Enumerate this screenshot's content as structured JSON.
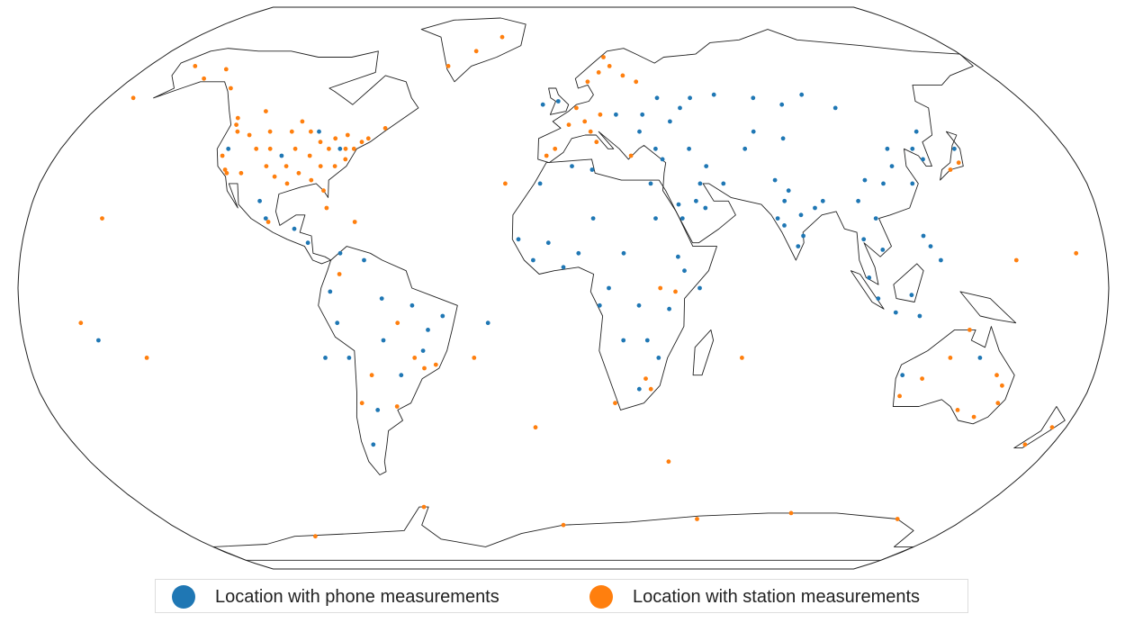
{
  "series": [
    {
      "name": "Location with phone measurements",
      "color": "#1f77b4",
      "points": [
        [
          -90,
          45
        ],
        [
          -80,
          40
        ],
        [
          -100,
          38
        ],
        [
          -120,
          40
        ],
        [
          -100,
          20
        ],
        [
          -103,
          25
        ],
        [
          -90,
          17
        ],
        [
          -85,
          13
        ],
        [
          -75,
          -10
        ],
        [
          -60,
          -3
        ],
        [
          -50,
          -5
        ],
        [
          -45,
          -12
        ],
        [
          -40,
          -8
        ],
        [
          -47,
          -18
        ],
        [
          -60,
          -15
        ],
        [
          -55,
          -25
        ],
        [
          -65,
          -35
        ],
        [
          -70,
          -45
        ],
        [
          -72,
          -20
        ],
        [
          -77,
          -1
        ],
        [
          -66,
          8
        ],
        [
          -74,
          10
        ],
        [
          30,
          50
        ],
        [
          37,
          55
        ],
        [
          40,
          48
        ],
        [
          45,
          52
        ],
        [
          50,
          55
        ],
        [
          28,
          45
        ],
        [
          20,
          50
        ],
        [
          -8,
          53
        ],
        [
          -2,
          54
        ],
        [
          33,
          40
        ],
        [
          35,
          37
        ],
        [
          45,
          40
        ],
        [
          60,
          56
        ],
        [
          75,
          55
        ],
        [
          85,
          53
        ],
        [
          95,
          56
        ],
        [
          105,
          52
        ],
        [
          130,
          45
        ],
        [
          70,
          45
        ],
        [
          80,
          43
        ],
        [
          65,
          40
        ],
        [
          55,
          30
        ],
        [
          50,
          35
        ],
        [
          45,
          25
        ],
        [
          40,
          20
        ],
        [
          47,
          30
        ],
        [
          39,
          24
        ],
        [
          48,
          23
        ],
        [
          72,
          20
        ],
        [
          75,
          25
        ],
        [
          77,
          28
        ],
        [
          80,
          15
        ],
        [
          85,
          23
        ],
        [
          78,
          12
        ],
        [
          88,
          25
        ],
        [
          74,
          18
        ],
        [
          80,
          21
        ],
        [
          73,
          31
        ],
        [
          100,
          14
        ],
        [
          105,
          20
        ],
        [
          106,
          11
        ],
        [
          101,
          3
        ],
        [
          110,
          -7
        ],
        [
          120,
          15
        ],
        [
          122,
          12
        ],
        [
          125,
          8
        ],
        [
          115,
          -2
        ],
        [
          104,
          -3
        ],
        [
          118,
          -8
        ],
        [
          110,
          30
        ],
        [
          115,
          35
        ],
        [
          120,
          30
        ],
        [
          104,
          31
        ],
        [
          100,
          25
        ],
        [
          116,
          40
        ],
        [
          125,
          40
        ],
        [
          127,
          37
        ],
        [
          140,
          40
        ],
        [
          5,
          10
        ],
        [
          0,
          6
        ],
        [
          -5,
          13
        ],
        [
          -15,
          14
        ],
        [
          -8,
          30
        ],
        [
          3,
          35
        ],
        [
          10,
          34
        ],
        [
          30,
          30
        ],
        [
          31,
          20
        ],
        [
          20,
          10
        ],
        [
          15,
          0
        ],
        [
          25,
          -5
        ],
        [
          35,
          -6
        ],
        [
          38,
          9
        ],
        [
          40,
          5
        ],
        [
          20,
          -15
        ],
        [
          28,
          -15
        ],
        [
          32,
          -20
        ],
        [
          26,
          -29
        ],
        [
          12,
          -5
        ],
        [
          -10,
          8
        ],
        [
          45,
          0
        ],
        [
          10,
          20
        ],
        [
          115,
          -25
        ],
        [
          140,
          -20
        ],
        [
          -25,
          -10
        ],
        [
          -80,
          -20
        ],
        [
          -155,
          -15
        ]
      ]
    },
    {
      "name": "Location with station measurements",
      "color": "#ff7f0e",
      "points": [
        [
          -122,
          47
        ],
        [
          -120,
          45
        ],
        [
          -118,
          34
        ],
        [
          -117,
          33
        ],
        [
          -112,
          33
        ],
        [
          -110,
          40
        ],
        [
          -105,
          40
        ],
        [
          -104,
          35
        ],
        [
          -100,
          45
        ],
        [
          -97,
          35
        ],
        [
          -95,
          30
        ],
        [
          -96,
          40
        ],
        [
          -93,
          45
        ],
        [
          -90,
          38
        ],
        [
          -88,
          42
        ],
        [
          -85,
          35
        ],
        [
          -84,
          40
        ],
        [
          -82,
          28
        ],
        [
          -80,
          35
        ],
        [
          -78,
          40
        ],
        [
          -75,
          40
        ],
        [
          -73,
          42
        ],
        [
          -71,
          43
        ],
        [
          -87,
          31
        ],
        [
          -92,
          33
        ],
        [
          -100,
          32
        ],
        [
          -108,
          45
        ],
        [
          -115,
          44
        ],
        [
          -121,
          38
        ],
        [
          -98,
          48
        ],
        [
          -83,
          43
        ],
        [
          -77,
          37
        ],
        [
          -150,
          61
        ],
        [
          -160,
          65
        ],
        [
          -145,
          64
        ],
        [
          -135,
          58
        ],
        [
          -114,
          51
        ],
        [
          -123,
          49
        ],
        [
          -79,
          44
        ],
        [
          -66,
          46
        ],
        [
          10,
          60
        ],
        [
          15,
          63
        ],
        [
          20,
          65
        ],
        [
          25,
          62
        ],
        [
          18,
          68
        ],
        [
          5,
          52
        ],
        [
          2,
          47
        ],
        [
          -3,
          40
        ],
        [
          -6,
          38
        ],
        [
          10,
          45
        ],
        [
          12,
          42
        ],
        [
          8,
          48
        ],
        [
          14,
          50
        ],
        [
          24,
          38
        ],
        [
          30,
          60
        ],
        [
          28,
          -26
        ],
        [
          30,
          -29
        ],
        [
          18,
          -33
        ],
        [
          37,
          -1
        ],
        [
          32,
          0
        ],
        [
          -47,
          -23
        ],
        [
          -50,
          -20
        ],
        [
          -58,
          -34
        ],
        [
          -65,
          -25
        ],
        [
          -70,
          -33
        ],
        [
          -43,
          -22
        ],
        [
          -74,
          4
        ],
        [
          -55,
          -10
        ],
        [
          151,
          -33
        ],
        [
          145,
          -37
        ],
        [
          150,
          -28
        ],
        [
          138,
          -35
        ],
        [
          116,
          -31
        ],
        [
          130,
          -20
        ],
        [
          147,
          -25
        ],
        [
          122,
          -26
        ],
        [
          135,
          -12
        ],
        [
          175,
          -40
        ],
        [
          170,
          -45
        ],
        [
          139,
          36
        ],
        [
          135,
          34
        ],
        [
          -155,
          20
        ],
        [
          -160,
          -10
        ],
        [
          -140,
          -20
        ],
        [
          -30,
          -20
        ],
        [
          -20,
          30
        ],
        [
          60,
          -20
        ],
        [
          -10,
          -40
        ],
        [
          170,
          10
        ],
        [
          150,
          8
        ],
        [
          -170,
          55
        ],
        [
          -40,
          70
        ],
        [
          -30,
          75
        ],
        [
          -50,
          65
        ],
        [
          40,
          -50
        ],
        [
          0,
          -70
        ],
        [
          60,
          -68
        ],
        [
          150,
          -68
        ],
        [
          -60,
          -64
        ],
        [
          100,
          -66
        ],
        [
          -120,
          -74
        ],
        [
          -80,
          23
        ],
        [
          -70,
          19
        ],
        [
          -99,
          19
        ]
      ]
    }
  ]
}
